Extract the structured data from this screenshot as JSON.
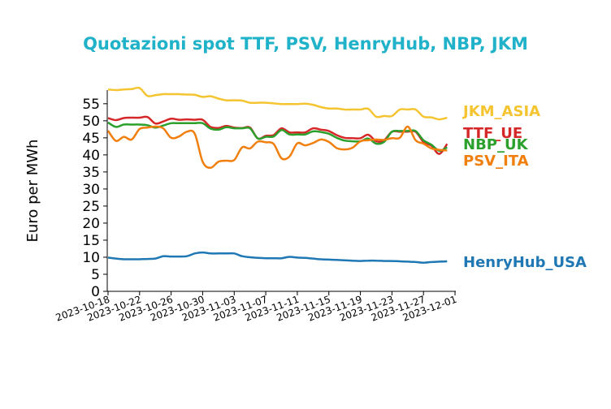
{
  "chart_data": {
    "type": "line",
    "title": "Quotazioni spot TTF, PSV, HenryHub, NBP, JKM",
    "ylabel": "Euro per MWh",
    "xlabel": "",
    "ylim": [
      0,
      59
    ],
    "yticks": [
      "0",
      "5",
      "10",
      "15",
      "20",
      "25",
      "30",
      "35",
      "40",
      "45",
      "50",
      "55"
    ],
    "xticks": [
      "2023-10-18",
      "2023-10-22",
      "2023-10-26",
      "2023-10-30",
      "2023-11-03",
      "2023-11-07",
      "2023-11-11",
      "2023-11-15",
      "2023-11-19",
      "2023-11-23",
      "2023-11-27",
      "2023-12-01"
    ],
    "x": [
      "2023-10-18",
      "2023-10-19",
      "2023-10-20",
      "2023-10-21",
      "2023-10-22",
      "2023-10-23",
      "2023-10-24",
      "2023-10-25",
      "2023-10-26",
      "2023-10-27",
      "2023-10-28",
      "2023-10-29",
      "2023-10-30",
      "2023-10-31",
      "2023-11-01",
      "2023-11-02",
      "2023-11-03",
      "2023-11-04",
      "2023-11-05",
      "2023-11-06",
      "2023-11-07",
      "2023-11-08",
      "2023-11-09",
      "2023-11-10",
      "2023-11-11",
      "2023-11-12",
      "2023-11-13",
      "2023-11-14",
      "2023-11-15",
      "2023-11-16",
      "2023-11-17",
      "2023-11-18",
      "2023-11-19",
      "2023-11-20",
      "2023-11-21",
      "2023-11-22",
      "2023-11-23",
      "2023-11-24",
      "2023-11-25",
      "2023-11-26",
      "2023-11-27",
      "2023-11-28",
      "2023-11-29",
      "2023-11-30"
    ],
    "legend": "right, labels at line ends",
    "grid": false,
    "series": [
      {
        "name": "JKM_ASIA",
        "color": "#f5c431",
        "values": [
          59.2,
          59.0,
          59.2,
          59.3,
          59.6,
          57.3,
          57.5,
          57.8,
          57.8,
          57.8,
          57.7,
          57.6,
          57.0,
          57.2,
          56.5,
          56.0,
          56.0,
          55.9,
          55.3,
          55.3,
          55.3,
          55.1,
          54.9,
          54.9,
          54.9,
          55.0,
          54.7,
          54.0,
          53.6,
          53.6,
          53.3,
          53.3,
          53.3,
          53.5,
          51.2,
          51.4,
          51.4,
          53.3,
          53.3,
          53.3,
          51.2,
          51.0,
          50.4,
          50.9
        ]
      },
      {
        "name": "TTF_UE",
        "color": "#d62728",
        "values": [
          50.8,
          50.2,
          50.8,
          50.9,
          50.9,
          51.1,
          49.2,
          49.8,
          50.6,
          50.3,
          50.4,
          50.3,
          50.3,
          48.2,
          47.9,
          48.5,
          48.0,
          47.9,
          48.0,
          44.8,
          45.6,
          45.8,
          47.8,
          46.6,
          46.6,
          46.6,
          47.8,
          47.4,
          47.0,
          45.8,
          45.0,
          44.9,
          44.9,
          45.9,
          44.0,
          44.3,
          46.8,
          46.8,
          46.8,
          46.8,
          43.8,
          42.7,
          40.3,
          43.2
        ]
      },
      {
        "name": "NBP_UK",
        "color": "#2ca02c",
        "values": [
          49.5,
          48.2,
          48.9,
          48.9,
          48.9,
          48.7,
          48.0,
          48.6,
          49.3,
          49.3,
          49.3,
          49.3,
          49.3,
          47.7,
          47.4,
          48.1,
          47.8,
          47.8,
          47.8,
          44.8,
          45.3,
          45.4,
          47.3,
          46.0,
          46.0,
          46.0,
          46.9,
          46.7,
          46.2,
          45.0,
          44.2,
          44.0,
          44.0,
          44.8,
          43.3,
          43.8,
          46.8,
          47.0,
          47.0,
          47.0,
          44.3,
          43.0,
          41.2,
          42.2
        ]
      },
      {
        "name": "PSV_ITA",
        "color": "#f07f0e",
        "values": [
          47.1,
          44.1,
          45.3,
          44.5,
          47.6,
          48.0,
          48.3,
          47.8,
          45.0,
          45.4,
          46.8,
          46.2,
          38.0,
          36.2,
          38.0,
          38.3,
          38.5,
          42.2,
          41.9,
          43.9,
          43.7,
          43.2,
          39.0,
          39.5,
          43.4,
          42.8,
          43.5,
          44.5,
          43.8,
          42.0,
          41.6,
          42.1,
          44.0,
          44.3,
          44.5,
          44.4,
          44.9,
          45.0,
          48.3,
          44.3,
          43.3,
          41.9,
          41.5,
          41.3
        ]
      },
      {
        "name": "HenryHub_USA",
        "color": "#1f77b4",
        "values": [
          9.9,
          9.6,
          9.4,
          9.4,
          9.4,
          9.5,
          9.6,
          10.3,
          10.2,
          10.2,
          10.3,
          11.1,
          11.4,
          11.1,
          11.1,
          11.1,
          11.1,
          10.3,
          10.0,
          9.8,
          9.7,
          9.7,
          9.7,
          10.1,
          9.9,
          9.8,
          9.6,
          9.4,
          9.3,
          9.2,
          9.1,
          9.0,
          8.9,
          9.0,
          9.0,
          8.9,
          8.9,
          8.8,
          8.7,
          8.6,
          8.4,
          8.6,
          8.7,
          8.8
        ]
      }
    ]
  }
}
